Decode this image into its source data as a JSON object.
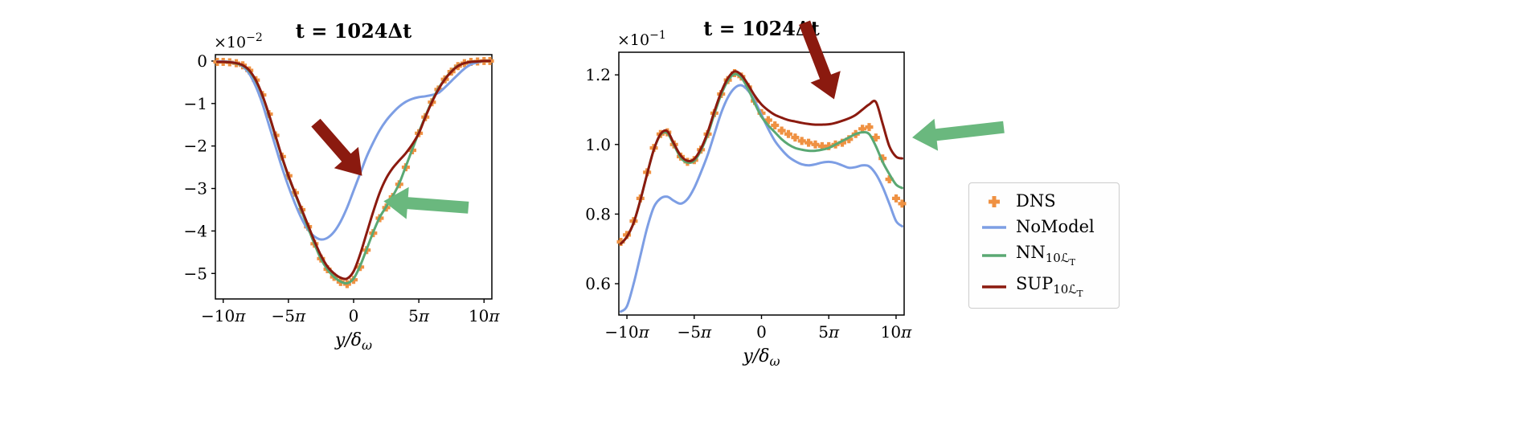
{
  "figure": {
    "background": "#ffffff",
    "description": "Two line plots comparing DNS, NoModel, NN and SUP models at t = 1024 delta-t, with annotation arrows and a shared legend"
  },
  "colors": {
    "dns_orange": "#ef9142",
    "nomodel_blue": "#7d9ee4",
    "nn_green": "#5aa873",
    "sup_maroon": "#8b1a0f",
    "arrow_green": "#6ab87e",
    "arrow_maroon": "#8b1a0f",
    "axes": "#000000",
    "legend_border": "#cccccc"
  },
  "legend": {
    "entries": [
      {
        "marker": "plus",
        "color": "#ef9142",
        "base": "DNS",
        "sub": "",
        "subsub": ""
      },
      {
        "marker": "line",
        "color": "#7d9ee4",
        "base": "NoModel",
        "sub": "",
        "subsub": ""
      },
      {
        "marker": "line",
        "color": "#5aa873",
        "base": "NN",
        "sub": "10ℒ",
        "subsub": "T"
      },
      {
        "marker": "line",
        "color": "#8b1a0f",
        "base": "SUP",
        "sub": "10ℒ",
        "subsub": "T"
      }
    ]
  },
  "chart_data": [
    {
      "id": "left",
      "type": "line",
      "title": "t = 1024Δt",
      "offset": {
        "base": "×10",
        "exp": "−2"
      },
      "xlabel": {
        "base": "y/δ",
        "sub": "ω"
      },
      "ylabel": "",
      "xlim": [
        -10.6,
        10.6
      ],
      "ylim": [
        -5.6,
        0.15
      ],
      "x_unit": "multiples of pi",
      "y_scale": "1e-2",
      "grid": false,
      "xticks": [
        {
          "v": -10,
          "label": "−10",
          "pi": true
        },
        {
          "v": -5,
          "label": "−5",
          "pi": true
        },
        {
          "v": 0,
          "label": "0",
          "pi": false
        },
        {
          "v": 5,
          "label": "5",
          "pi": true
        },
        {
          "v": 10,
          "label": "10",
          "pi": true
        }
      ],
      "yticks": [
        {
          "v": 0,
          "label": "0"
        },
        {
          "v": -1,
          "label": "−1"
        },
        {
          "v": -2,
          "label": "−2"
        },
        {
          "v": -3,
          "label": "−3"
        },
        {
          "v": -4,
          "label": "−4"
        },
        {
          "v": -5,
          "label": "−5"
        }
      ],
      "x": [
        -10.45,
        -10,
        -9.5,
        -9,
        -8.5,
        -8,
        -7.5,
        -7,
        -6.5,
        -6,
        -5.5,
        -5,
        -4.5,
        -4,
        -3.5,
        -3,
        -2.5,
        -2,
        -1.5,
        -1,
        -0.5,
        0,
        0.5,
        1,
        1.5,
        2,
        2.5,
        3,
        3.5,
        4,
        4.5,
        5,
        5.5,
        6,
        6.5,
        7,
        7.5,
        8,
        8.5,
        9,
        9.5,
        10,
        10.45
      ],
      "series": [
        {
          "name": "DNS",
          "style": "marker",
          "color": "#ef9142",
          "y": [
            -0.02,
            -0.02,
            -0.03,
            -0.05,
            -0.1,
            -0.22,
            -0.45,
            -0.8,
            -1.25,
            -1.75,
            -2.25,
            -2.7,
            -3.1,
            -3.5,
            -3.9,
            -4.3,
            -4.65,
            -4.9,
            -5.08,
            -5.2,
            -5.25,
            -5.15,
            -4.85,
            -4.45,
            -4.05,
            -3.7,
            -3.45,
            -3.2,
            -2.9,
            -2.5,
            -2.1,
            -1.7,
            -1.32,
            -0.97,
            -0.67,
            -0.43,
            -0.25,
            -0.12,
            -0.05,
            -0.02,
            -0.01,
            0.0,
            0.0
          ]
        },
        {
          "name": "NoModel",
          "style": "line",
          "color": "#7d9ee4",
          "y": [
            -0.01,
            -0.01,
            -0.02,
            -0.05,
            -0.13,
            -0.3,
            -0.6,
            -1.0,
            -1.5,
            -2.0,
            -2.5,
            -2.95,
            -3.35,
            -3.7,
            -3.97,
            -4.13,
            -4.2,
            -4.16,
            -4.02,
            -3.78,
            -3.45,
            -3.05,
            -2.65,
            -2.25,
            -1.92,
            -1.63,
            -1.4,
            -1.22,
            -1.07,
            -0.96,
            -0.89,
            -0.85,
            -0.83,
            -0.8,
            -0.75,
            -0.62,
            -0.47,
            -0.32,
            -0.18,
            -0.08,
            -0.03,
            0.0,
            0.0
          ]
        },
        {
          "name": "NN",
          "style": "line",
          "color": "#5aa873",
          "y": [
            -0.02,
            -0.02,
            -0.03,
            -0.06,
            -0.11,
            -0.24,
            -0.47,
            -0.82,
            -1.27,
            -1.77,
            -2.27,
            -2.72,
            -3.12,
            -3.52,
            -3.92,
            -4.31,
            -4.66,
            -4.91,
            -5.08,
            -5.19,
            -5.23,
            -5.12,
            -4.82,
            -4.43,
            -4.03,
            -3.68,
            -3.43,
            -3.18,
            -2.88,
            -2.48,
            -2.08,
            -1.68,
            -1.3,
            -0.95,
            -0.65,
            -0.42,
            -0.24,
            -0.11,
            -0.05,
            -0.02,
            -0.01,
            0.0,
            0.0
          ]
        },
        {
          "name": "SUP",
          "style": "line",
          "color": "#8b1a0f",
          "y": [
            -0.02,
            -0.02,
            -0.03,
            -0.05,
            -0.1,
            -0.22,
            -0.45,
            -0.8,
            -1.25,
            -1.75,
            -2.25,
            -2.7,
            -3.1,
            -3.48,
            -3.86,
            -4.24,
            -4.58,
            -4.84,
            -5.0,
            -5.1,
            -5.12,
            -4.95,
            -4.55,
            -4.05,
            -3.55,
            -3.1,
            -2.76,
            -2.52,
            -2.34,
            -2.17,
            -1.96,
            -1.7,
            -1.32,
            -0.97,
            -0.67,
            -0.43,
            -0.25,
            -0.12,
            -0.05,
            -0.02,
            -0.01,
            0.0,
            0.0
          ]
        }
      ],
      "arrows": [
        {
          "name": "maroon-arrow",
          "color": "#8b1a0f",
          "from": [
            -2.9,
            -1.45
          ],
          "to": [
            0.65,
            -2.7
          ]
        },
        {
          "name": "green-arrow",
          "color": "#6ab87e",
          "from": [
            8.8,
            -3.45
          ],
          "to": [
            2.3,
            -3.3
          ]
        }
      ]
    },
    {
      "id": "right",
      "type": "line",
      "title": "t = 1024Δt",
      "offset": {
        "base": "×10",
        "exp": "−1"
      },
      "xlabel": {
        "base": "y/δ",
        "sub": "ω"
      },
      "ylabel": "",
      "xlim": [
        -10.6,
        10.6
      ],
      "ylim": [
        0.51,
        1.265
      ],
      "x_unit": "multiples of pi",
      "y_scale": "1e-1",
      "grid": false,
      "xticks": [
        {
          "v": -10,
          "label": "−10",
          "pi": true
        },
        {
          "v": -5,
          "label": "−5",
          "pi": true
        },
        {
          "v": 0,
          "label": "0",
          "pi": false
        },
        {
          "v": 5,
          "label": "5",
          "pi": true
        },
        {
          "v": 10,
          "label": "10",
          "pi": true
        }
      ],
      "yticks": [
        {
          "v": 0.6,
          "label": "0.6"
        },
        {
          "v": 0.8,
          "label": "0.8"
        },
        {
          "v": 1.0,
          "label": "1.0"
        },
        {
          "v": 1.2,
          "label": "1.2"
        }
      ],
      "x": [
        -10.45,
        -10,
        -9.5,
        -9,
        -8.5,
        -8,
        -7.5,
        -7,
        -6.5,
        -6,
        -5.5,
        -5,
        -4.5,
        -4,
        -3.5,
        -3,
        -2.5,
        -2,
        -1.5,
        -1,
        -0.5,
        0,
        0.5,
        1,
        1.5,
        2,
        2.5,
        3,
        3.5,
        4,
        4.5,
        5,
        5.5,
        6,
        6.5,
        7,
        7.5,
        8,
        8.5,
        9,
        9.5,
        10,
        10.45
      ],
      "series": [
        {
          "name": "DNS",
          "style": "marker",
          "color": "#ef9142",
          "y": [
            0.72,
            0.74,
            0.78,
            0.845,
            0.92,
            0.99,
            1.03,
            1.035,
            1.0,
            0.965,
            0.95,
            0.955,
            0.985,
            1.03,
            1.09,
            1.145,
            1.185,
            1.205,
            1.195,
            1.165,
            1.125,
            1.09,
            1.07,
            1.055,
            1.04,
            1.03,
            1.02,
            1.01,
            1.005,
            1.0,
            0.995,
            0.995,
            1.0,
            1.005,
            1.015,
            1.03,
            1.045,
            1.05,
            1.02,
            0.96,
            0.9,
            0.845,
            0.83
          ]
        },
        {
          "name": "NoModel",
          "style": "line",
          "color": "#7d9ee4",
          "y": [
            0.52,
            0.535,
            0.6,
            0.68,
            0.76,
            0.82,
            0.845,
            0.85,
            0.838,
            0.83,
            0.843,
            0.875,
            0.92,
            0.97,
            1.03,
            1.09,
            1.135,
            1.162,
            1.17,
            1.155,
            1.125,
            1.085,
            1.045,
            1.01,
            0.985,
            0.965,
            0.952,
            0.943,
            0.94,
            0.943,
            0.948,
            0.95,
            0.947,
            0.94,
            0.933,
            0.935,
            0.94,
            0.937,
            0.915,
            0.878,
            0.83,
            0.78,
            0.765
          ]
        },
        {
          "name": "NN",
          "style": "line",
          "color": "#5aa873",
          "y": [
            0.715,
            0.735,
            0.775,
            0.84,
            0.915,
            0.985,
            1.028,
            1.033,
            0.998,
            0.962,
            0.948,
            0.953,
            0.983,
            1.028,
            1.088,
            1.143,
            1.183,
            1.202,
            1.192,
            1.16,
            1.118,
            1.08,
            1.055,
            1.035,
            1.015,
            1.0,
            0.99,
            0.985,
            0.982,
            0.982,
            0.985,
            0.99,
            1.0,
            1.01,
            1.02,
            1.03,
            1.035,
            1.03,
            0.995,
            0.95,
            0.915,
            0.885,
            0.875
          ]
        },
        {
          "name": "SUP",
          "style": "line",
          "color": "#8b1a0f",
          "y": [
            0.715,
            0.735,
            0.775,
            0.84,
            0.915,
            0.985,
            1.03,
            1.038,
            1.002,
            0.968,
            0.953,
            0.958,
            0.988,
            1.035,
            1.095,
            1.15,
            1.19,
            1.21,
            1.2,
            1.172,
            1.14,
            1.115,
            1.098,
            1.085,
            1.077,
            1.07,
            1.066,
            1.062,
            1.059,
            1.057,
            1.057,
            1.058,
            1.062,
            1.068,
            1.075,
            1.085,
            1.1,
            1.115,
            1.122,
            1.06,
            0.995,
            0.965,
            0.96
          ]
        }
      ],
      "arrows": [
        {
          "name": "maroon-arrow",
          "color": "#8b1a0f",
          "from": [
            3.2,
            1.35
          ],
          "to": [
            5.4,
            1.13
          ]
        },
        {
          "name": "green-arrow",
          "color": "#6ab87e",
          "from": [
            18.0,
            1.05
          ],
          "to": [
            11.2,
            1.02
          ]
        }
      ]
    }
  ]
}
